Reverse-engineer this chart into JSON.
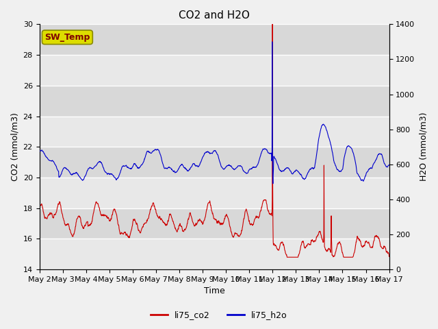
{
  "title": "CO2 and H2O",
  "xlabel": "Time",
  "ylabel_left": "CO2 (mmol/m3)",
  "ylabel_right": "H2O (mmol/m3)",
  "ylim_left": [
    14,
    30
  ],
  "ylim_right": [
    0,
    1400
  ],
  "yticks_left": [
    14,
    16,
    18,
    20,
    22,
    24,
    26,
    28,
    30
  ],
  "yticks_right": [
    0,
    200,
    400,
    600,
    800,
    1000,
    1200,
    1400
  ],
  "xtick_labels": [
    "May 2",
    "May 3",
    "May 4",
    "May 5",
    "May 6",
    "May 7",
    "May 8",
    "May 9",
    "May 10",
    "May 11",
    "May 12",
    "May 13",
    "May 14",
    "May 15",
    "May 16",
    "May 17"
  ],
  "co2_color": "#cc0000",
  "h2o_color": "#0000cc",
  "bg_color_light": "#e8e8e8",
  "bg_color_dark": "#d0d0d0",
  "grid_color": "#ffffff",
  "fig_bg_color": "#f0f0f0",
  "sw_temp_box_color": "#dddd00",
  "sw_temp_text_color": "#800000",
  "annotation_box": "SW_Temp",
  "n_days": 15,
  "n_points": 1440
}
